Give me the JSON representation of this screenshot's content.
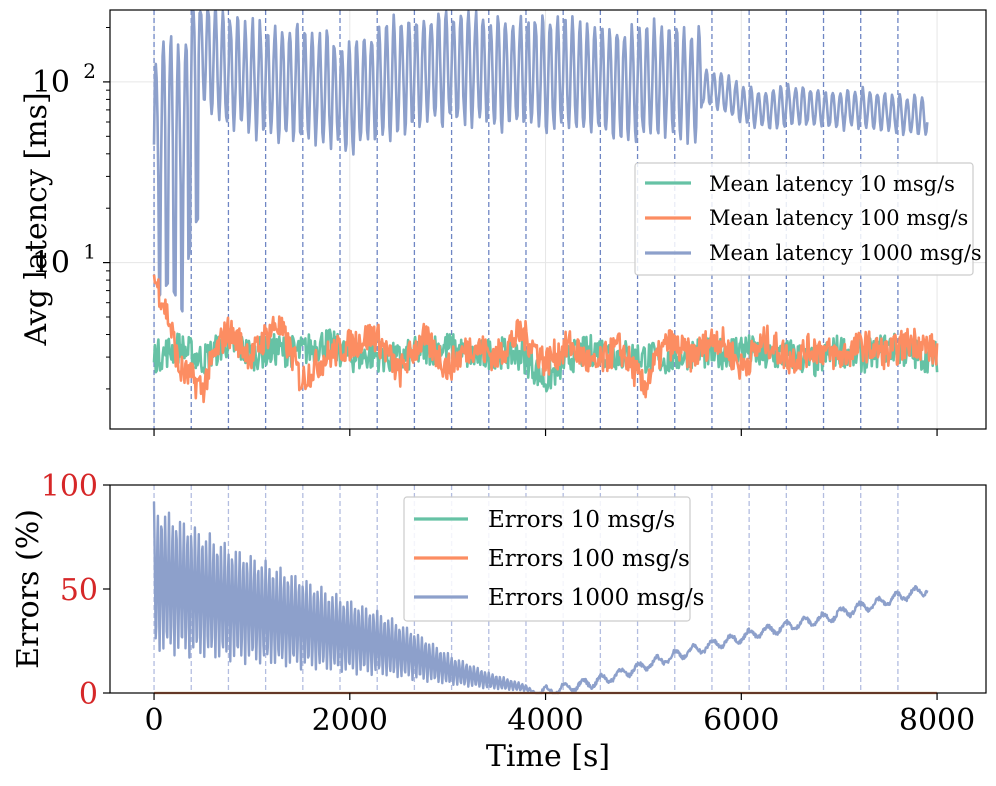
{
  "chart_data": [
    {
      "type": "line",
      "yscale": "log",
      "ylabel": "Avg latency [ms]",
      "xlabel": "",
      "xlim": [
        -450,
        8500
      ],
      "ylim": [
        1.2,
        250
      ],
      "yticks": [
        10,
        100
      ],
      "ytick_labels": [
        "10^1",
        "10^2"
      ],
      "ytick_base": "10",
      "ytick_exps": [
        "1",
        "2"
      ],
      "xticks": [
        0,
        2000,
        4000,
        6000,
        8000
      ],
      "vlines_x": [
        0,
        380,
        760,
        1140,
        1520,
        1900,
        2280,
        2660,
        3040,
        3420,
        3800,
        4180,
        4560,
        4940,
        5320,
        5700,
        6080,
        6460,
        6840,
        7220,
        7600
      ],
      "legend_position": "center-right",
      "series": [
        {
          "name": "Mean latency 10 msg/s",
          "color": "#66c2a5",
          "x": [
            0,
            250,
            500,
            750,
            1000,
            1250,
            1500,
            1750,
            2000,
            2250,
            2500,
            2750,
            3000,
            3250,
            3500,
            3750,
            4000,
            4250,
            4500,
            4750,
            5000,
            5250,
            5500,
            5750,
            6000,
            6250,
            6500,
            6750,
            7000,
            7250,
            7500,
            7750,
            8000
          ],
          "y": [
            3.0,
            3.4,
            2.9,
            3.6,
            3.1,
            3.3,
            3.2,
            3.6,
            3.0,
            3.1,
            2.9,
            3.3,
            3.4,
            3.0,
            3.2,
            3.1,
            2.2,
            3.0,
            3.3,
            3.1,
            3.0,
            2.9,
            3.2,
            3.1,
            3.4,
            3.0,
            3.1,
            2.8,
            3.3,
            3.0,
            3.4,
            3.1,
            3.0
          ]
        },
        {
          "name": "Mean latency 100 msg/s",
          "color": "#fc8d62",
          "x": [
            0,
            250,
            500,
            750,
            1000,
            1250,
            1500,
            1750,
            2000,
            2250,
            2500,
            2750,
            3000,
            3250,
            3500,
            3750,
            4000,
            4250,
            4500,
            4750,
            5000,
            5250,
            5500,
            5750,
            6000,
            6250,
            6500,
            6750,
            7000,
            7250,
            7500,
            7750,
            8000
          ],
          "y": [
            8.2,
            2.6,
            2.0,
            4.2,
            3.0,
            4.6,
            2.2,
            3.0,
            3.5,
            4.0,
            2.4,
            3.8,
            2.6,
            3.5,
            3.0,
            4.1,
            2.8,
            3.5,
            2.6,
            3.4,
            2.0,
            3.6,
            3.0,
            3.9,
            2.6,
            3.7,
            2.9,
            3.4,
            3.0,
            3.5,
            3.1,
            3.7,
            3.2
          ]
        },
        {
          "name": "Mean latency 1000 msg/s",
          "color": "#8da0cb",
          "x": [
            0,
            150,
            300,
            400,
            500,
            750,
            1000,
            1250,
            1500,
            1750,
            2000,
            2250,
            2500,
            2750,
            3000,
            3250,
            3500,
            3750,
            4000,
            4250,
            4500,
            4750,
            5000,
            5250,
            5500,
            5750,
            6000,
            6250,
            6500,
            6750,
            7000,
            7250,
            7500,
            7750,
            7900
          ],
          "y": [
            45,
            60,
            40,
            120,
            150,
            110,
            105,
            100,
            95,
            90,
            80,
            95,
            110,
            115,
            120,
            120,
            115,
            115,
            110,
            110,
            105,
            100,
            100,
            105,
            95,
            90,
            75,
            70,
            75,
            72,
            70,
            72,
            68,
            65,
            65
          ]
        }
      ]
    },
    {
      "type": "line",
      "ylabel": "Errors (%)",
      "xlabel": "Time [s]",
      "xlim": [
        -450,
        8500
      ],
      "ylim": [
        0,
        100
      ],
      "yticks": [
        0,
        50,
        100
      ],
      "ytick_labels": [
        "0",
        "50",
        "100"
      ],
      "ytick_color": "#d62728",
      "xticks": [
        0,
        2000,
        4000,
        6000,
        8000
      ],
      "xtick_labels": [
        "0",
        "2000",
        "4000",
        "6000",
        "8000"
      ],
      "vlines_x": [
        0,
        380,
        760,
        1140,
        1520,
        1900,
        2280,
        2660,
        3040,
        3420,
        3800,
        4180,
        4560,
        4940,
        5320,
        5700,
        6080,
        6460,
        6840,
        7220,
        7600
      ],
      "legend_position": "top-center",
      "series": [
        {
          "name": "Errors 10 msg/s",
          "color": "#66c2a5",
          "x": [
            0,
            8000
          ],
          "y": [
            0,
            0
          ]
        },
        {
          "name": "Errors 100 msg/s",
          "color": "#fc8d62",
          "x": [
            0,
            8000
          ],
          "y": [
            0,
            0
          ]
        },
        {
          "name": "Errors 1000 msg/s",
          "color": "#8da0cb",
          "x": [
            0,
            380,
            760,
            1140,
            1520,
            1900,
            2280,
            2660,
            3040,
            3420,
            3800,
            3900,
            4180,
            4560,
            4940,
            5320,
            5700,
            6080,
            6460,
            6840,
            7220,
            7600,
            7900
          ],
          "y": [
            92,
            82,
            72,
            64,
            56,
            47,
            40,
            30,
            18,
            10,
            4,
            0,
            2,
            6,
            12,
            18,
            23,
            28,
            32,
            36,
            41,
            46,
            50
          ]
        }
      ]
    }
  ]
}
